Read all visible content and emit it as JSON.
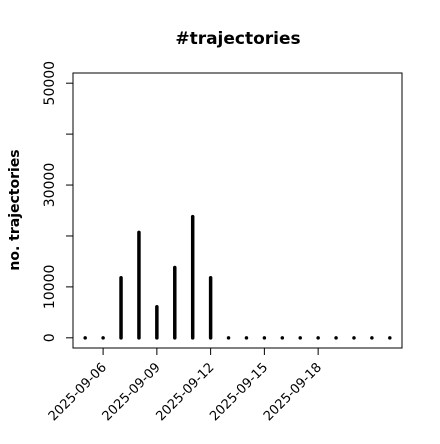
{
  "chart_data": {
    "type": "spike",
    "title": "#trajectories",
    "ylabel": "no. trajectories",
    "x": [
      "2025-09-05",
      "2025-09-06",
      "2025-09-07",
      "2025-09-08",
      "2025-09-09",
      "2025-09-10",
      "2025-09-11",
      "2025-09-12",
      "2025-09-13",
      "2025-09-14",
      "2025-09-15",
      "2025-09-16",
      "2025-09-17",
      "2025-09-18",
      "2025-09-19",
      "2025-09-20",
      "2025-09-21",
      "2025-09-22"
    ],
    "values": [
      0,
      0,
      11800,
      20700,
      6100,
      13800,
      23800,
      11800,
      0,
      0,
      0,
      0,
      0,
      0,
      0,
      0,
      0,
      0
    ],
    "color": "#000000",
    "xlim": [
      "2025-09-05",
      "2025-09-22"
    ],
    "xticks": [
      "2025-09-06",
      "2025-09-09",
      "2025-09-12",
      "2025-09-15",
      "2025-09-18"
    ],
    "ylim": [
      0,
      50000
    ],
    "yticks": [
      0,
      10000,
      30000,
      50000
    ],
    "yminorticks": [
      20000,
      40000
    ]
  }
}
